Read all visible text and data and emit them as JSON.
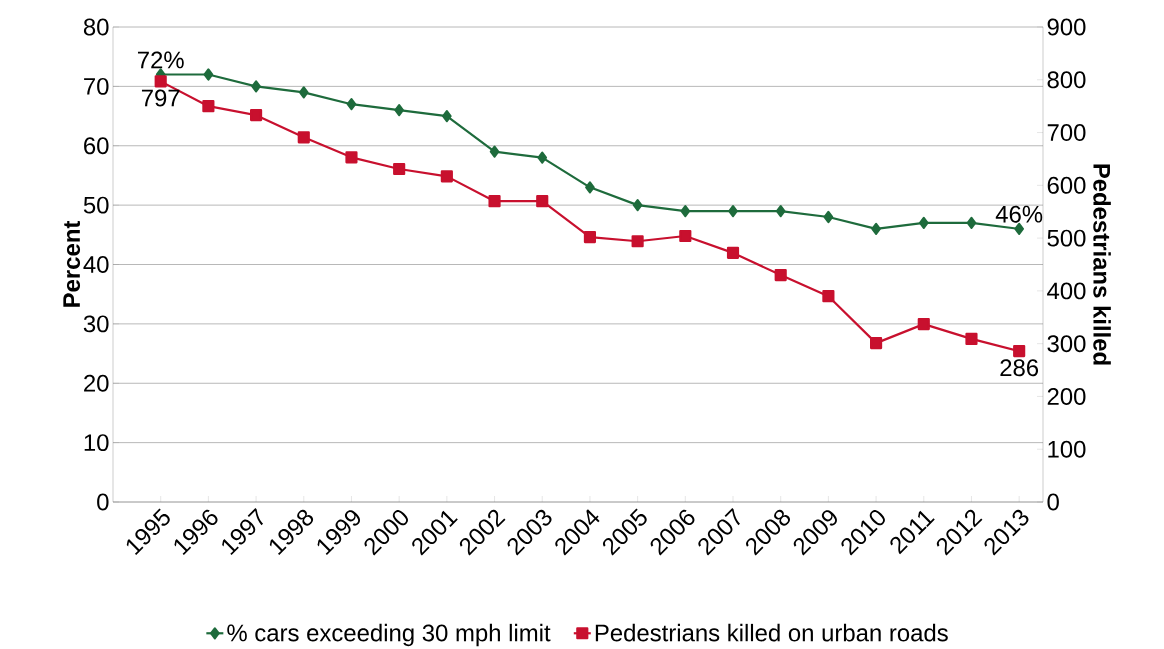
{
  "chart_data": {
    "type": "line",
    "categories": [
      "1995",
      "1996",
      "1997",
      "1998",
      "1999",
      "2000",
      "2001",
      "2002",
      "2003",
      "2004",
      "2005",
      "2006",
      "2007",
      "2008",
      "2009",
      "2010",
      "2011",
      "2012",
      "2013"
    ],
    "series": [
      {
        "name": "% cars exceeding 30 mph limit",
        "color": "#1e6b3c",
        "marker": "diamond",
        "values": [
          72,
          72,
          70,
          69,
          67,
          66,
          65,
          59,
          58,
          53,
          50,
          49,
          49,
          49,
          48,
          46,
          47,
          47,
          46
        ]
      },
      {
        "name": "Pedestrians killed on urban roads",
        "color": "#c8102e",
        "marker": "square",
        "axis": "y2",
        "values": [
          797,
          750,
          733,
          691,
          653,
          631,
          617,
          570,
          570,
          502,
          494,
          504,
          472,
          430,
          390,
          301,
          337,
          309,
          286
        ]
      }
    ],
    "ylabel": "Percent",
    "y2label": "Pedestrians killed",
    "ylim": [
      0,
      80
    ],
    "yticks": [
      0,
      10,
      20,
      30,
      40,
      50,
      60,
      70,
      80
    ],
    "y2lim": [
      0,
      900
    ],
    "y2ticks": [
      0,
      100,
      200,
      300,
      400,
      500,
      600,
      700,
      800,
      900
    ],
    "grid": "y",
    "legend": "bottom",
    "line_style": "solid",
    "annotations": [
      {
        "text": "72%",
        "x": "1995",
        "y": 72
      },
      "797",
      {
        "text": "46%",
        "x": "2013",
        "y": 46
      },
      "286"
    ]
  }
}
